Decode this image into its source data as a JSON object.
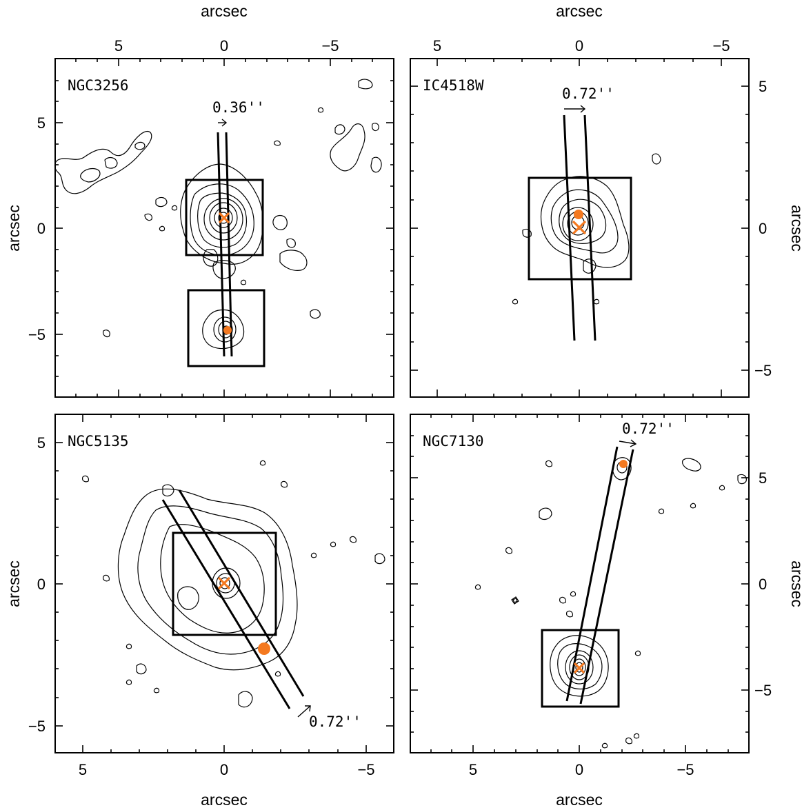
{
  "axis_unit_label": "arcsec",
  "panels": [
    {
      "id": "ngc3256",
      "name": "NGC3256",
      "slit_width_label": "0.36''",
      "x_ticks": [
        "5",
        "0",
        "−5"
      ],
      "y_ticks": [
        "5",
        "0",
        "−5"
      ],
      "x_labels": "top",
      "y_labels": "left"
    },
    {
      "id": "ic4518w",
      "name": "IC4518W",
      "slit_width_label": "0.72''",
      "x_ticks": [
        "5",
        "0",
        "−5"
      ],
      "y_ticks": [
        "5",
        "0",
        "−5"
      ],
      "x_labels": "top",
      "y_labels": "right"
    },
    {
      "id": "ngc5135",
      "name": "NGC5135",
      "slit_width_label": "0.72''",
      "x_ticks": [
        "5",
        "0",
        "−5"
      ],
      "y_ticks": [
        "5",
        "0",
        "−5"
      ],
      "x_labels": "bottom",
      "y_labels": "left"
    },
    {
      "id": "ngc7130",
      "name": "NGC7130",
      "slit_width_label": "0.72''",
      "x_ticks": [
        "5",
        "0",
        "−5"
      ],
      "y_ticks": [
        "5",
        "0",
        "−5"
      ],
      "x_labels": "bottom",
      "y_labels": "right"
    }
  ],
  "colors": {
    "marker": "#f47920",
    "ink": "#000000"
  }
}
